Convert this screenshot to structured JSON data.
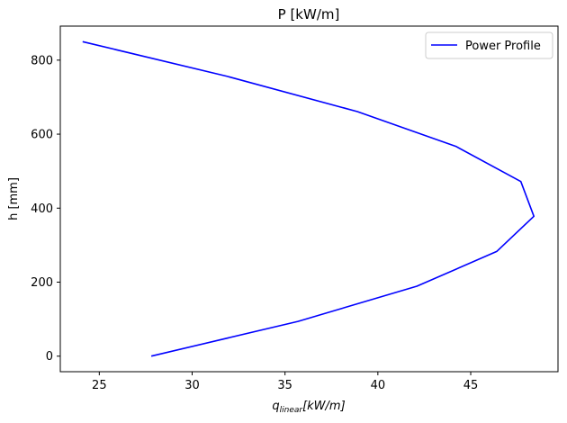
{
  "chart_data": {
    "type": "line",
    "title": "P [kW/m]",
    "xlabel": "q_linear[kW/m]",
    "xlabel_main": "q",
    "xlabel_sub": "linear",
    "xlabel_rest": "[kW/m]",
    "ylabel": "h [mm]",
    "xlim": [
      22.9,
      49.7
    ],
    "ylim": [
      -42,
      892
    ],
    "xticks": [
      25,
      30,
      35,
      40,
      45
    ],
    "yticks": [
      0,
      200,
      400,
      600,
      800
    ],
    "grid": false,
    "legend_position": "top-right",
    "series": [
      {
        "name": "Power Profile",
        "color": "#0000ff",
        "x": [
          27.8,
          35.7,
          42.1,
          46.4,
          48.4,
          47.7,
          44.2,
          38.9,
          31.9,
          24.1
        ],
        "y": [
          0,
          94,
          189,
          283,
          378,
          472,
          567,
          661,
          756,
          850
        ]
      }
    ]
  }
}
